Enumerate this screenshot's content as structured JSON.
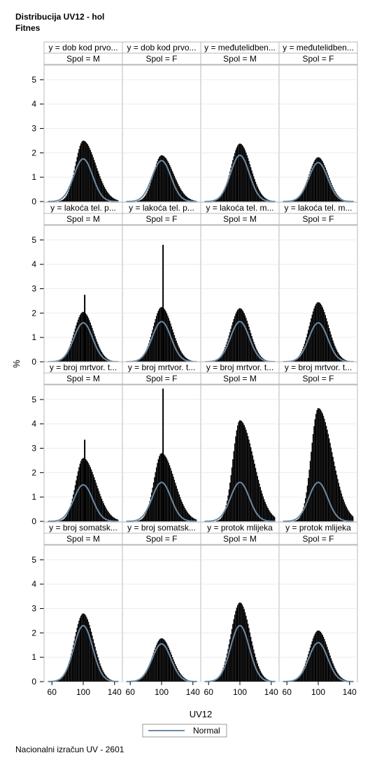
{
  "title": "Distribucija UV12 - hol",
  "subtitle": "Fitnes",
  "footer": "Nacionalni izračun UV - 2601",
  "chart_data": {
    "type": "histogram-panel",
    "xlabel": "UV12",
    "ylabel": "%",
    "x_ticks": [
      60,
      100,
      140
    ],
    "xlim": [
      50,
      150
    ],
    "y_ticks": [
      0,
      1,
      2,
      3,
      4,
      5
    ],
    "ylim": [
      0,
      5.6
    ],
    "legend": {
      "position": "bottom-center",
      "entries": [
        "Normal"
      ]
    },
    "colors": {
      "bars": "#000000",
      "normal_curve": "#6f8aa3",
      "border": "#b8b8b8",
      "header_bg": "#ffffff"
    },
    "rows": [
      {
        "trait_labels": [
          "y = dob kod prvo...",
          "y = dob kod prvo...",
          "y = međutelidben...",
          "y = međutelidben..."
        ],
        "panels": [
          {
            "spol": "Spol = M",
            "peak": 2.5,
            "normal_peak": 1.75,
            "skew": 0.8,
            "spike": null
          },
          {
            "spol": "Spol = F",
            "peak": 1.9,
            "normal_peak": 1.68,
            "skew": 0.6,
            "spike": null
          },
          {
            "spol": "Spol = M",
            "peak": 2.38,
            "normal_peak": 1.9,
            "skew": 0.3,
            "spike": null
          },
          {
            "spol": "Spol = F",
            "peak": 1.82,
            "normal_peak": 1.6,
            "skew": 0.1,
            "spike": null
          }
        ]
      },
      {
        "trait_labels": [
          "y = lakoća tel. p...",
          "y = lakoća tel. p...",
          "y = lakoća tel. m...",
          "y = lakoća tel. m..."
        ],
        "panels": [
          {
            "spol": "Spol = M",
            "peak": 2.05,
            "normal_peak": 1.6,
            "skew": 0.2,
            "spike": 2.75
          },
          {
            "spol": "Spol = F",
            "peak": 2.25,
            "normal_peak": 1.65,
            "skew": 0.3,
            "spike": 4.8
          },
          {
            "spol": "Spol = M",
            "peak": 2.2,
            "normal_peak": 1.65,
            "skew": 0.1,
            "spike": null
          },
          {
            "spol": "Spol = F",
            "peak": 2.45,
            "normal_peak": 1.6,
            "skew": 0.2,
            "spike": null
          }
        ]
      },
      {
        "trait_labels": [
          "y = broj mrtvor. t...",
          "y = broj mrtvor. t...",
          "y = broj mrtvor. t...",
          "y = broj mrtvor. t..."
        ],
        "panels": [
          {
            "spol": "Spol = M",
            "peak": 2.6,
            "normal_peak": 1.5,
            "skew": 0.9,
            "spike": 3.35
          },
          {
            "spol": "Spol = F",
            "peak": 2.8,
            "normal_peak": 1.6,
            "skew": 0.9,
            "spike": 5.45
          },
          {
            "spol": "Spol = M",
            "peak": 4.15,
            "normal_peak": 1.6,
            "skew": 1.2,
            "spike": null
          },
          {
            "spol": "Spol = F",
            "peak": 4.65,
            "normal_peak": 1.6,
            "skew": 1.2,
            "spike": null
          }
        ]
      },
      {
        "trait_labels": [
          "y = broj somatsk...",
          "y = broj somatsk...",
          "y = protok mlijeka",
          "y = protok mlijeka"
        ],
        "panels": [
          {
            "spol": "Spol = M",
            "peak": 2.8,
            "normal_peak": 2.3,
            "skew": 0.2,
            "spike": null
          },
          {
            "spol": "Spol = F",
            "peak": 1.78,
            "normal_peak": 1.55,
            "skew": 0.2,
            "spike": null
          },
          {
            "spol": "Spol = M",
            "peak": 3.25,
            "normal_peak": 2.3,
            "skew": 0.2,
            "spike": null
          },
          {
            "spol": "Spol = F",
            "peak": 2.1,
            "normal_peak": 1.6,
            "skew": 0.2,
            "spike": null
          }
        ]
      }
    ]
  }
}
